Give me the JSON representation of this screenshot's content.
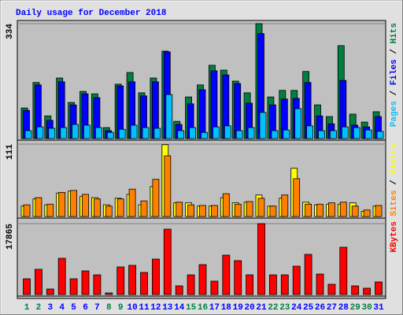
{
  "legend_separator": "/",
  "chart_data": [
    {
      "type": "bar",
      "title": "Daily usage for December 2018",
      "ylim": [
        0,
        334
      ],
      "yticks": [
        334
      ],
      "series": [
        {
          "name": "Hits",
          "color": "#008040",
          "values": [
            89,
            163,
            66,
            176,
            105,
            137,
            130,
            32,
            158,
            192,
            133,
            176,
            254,
            50,
            121,
            156,
            213,
            199,
            167,
            133,
            334,
            121,
            140,
            140,
            195,
            98,
            64,
            270,
            71,
            48,
            78
          ]
        },
        {
          "name": "Files",
          "color": "#0000ff",
          "values": [
            82,
            156,
            53,
            165,
            98,
            130,
            119,
            23,
            153,
            165,
            124,
            165,
            252,
            41,
            101,
            142,
            197,
            185,
            160,
            103,
            305,
            98,
            115,
            117,
            163,
            66,
            43,
            169,
            39,
            34,
            64
          ]
        },
        {
          "name": "Pages",
          "color": "#00c0ff",
          "values": [
            23,
            34,
            30,
            32,
            41,
            39,
            32,
            18,
            27,
            39,
            32,
            30,
            128,
            23,
            32,
            18,
            34,
            37,
            23,
            32,
            76,
            23,
            25,
            87,
            37,
            23,
            23,
            34,
            32,
            25,
            21
          ]
        }
      ]
    },
    {
      "type": "bar",
      "ylim": [
        0,
        111
      ],
      "yticks": [
        111
      ],
      "series": [
        {
          "name": "Visits",
          "color": "#ffff00",
          "values": [
            16,
            27,
            18,
            36,
            39,
            31,
            29,
            18,
            28,
            34,
            18,
            46,
            110,
            21,
            21,
            16,
            16,
            29,
            21,
            22,
            33,
            16,
            28,
            74,
            22,
            18,
            19,
            19,
            21,
            8,
            16
          ]
        },
        {
          "name": "Sites",
          "color": "#ff8000",
          "values": [
            18,
            29,
            19,
            37,
            40,
            34,
            27,
            16,
            27,
            42,
            24,
            57,
            93,
            22,
            18,
            17,
            17,
            35,
            19,
            23,
            28,
            16,
            33,
            58,
            19,
            19,
            21,
            22,
            16,
            10,
            17
          ]
        }
      ]
    },
    {
      "type": "bar",
      "ylim": [
        0,
        17865
      ],
      "yticks": [
        17865
      ],
      "categories": [
        "1",
        "2",
        "3",
        "4",
        "5",
        "6",
        "7",
        "8",
        "9",
        "10",
        "11",
        "12",
        "13",
        "14",
        "15",
        "16",
        "17",
        "18",
        "19",
        "20",
        "21",
        "22",
        "23",
        "24",
        "25",
        "26",
        "27",
        "28",
        "29",
        "30",
        "31"
      ],
      "category_colors": [
        "#008040",
        "#008040",
        "#0000ff",
        "#0000ff",
        "#0000ff",
        "#0000ff",
        "#0000ff",
        "#008040",
        "#008040",
        "#0000ff",
        "#0000ff",
        "#0000ff",
        "#0000ff",
        "#0000ff",
        "#008040",
        "#008040",
        "#0000ff",
        "#0000ff",
        "#0000ff",
        "#0000ff",
        "#0000ff",
        "#008040",
        "#008040",
        "#0000ff",
        "#0000ff",
        "#0000ff",
        "#0000ff",
        "#0000ff",
        "#008040",
        "#008040",
        "#0000ff"
      ],
      "series": [
        {
          "name": "KBytes",
          "color": "#ff0000",
          "values": [
            3970,
            6352,
            1390,
            9130,
            3970,
            5955,
            4960,
            400,
            6950,
            7345,
            5560,
            8930,
            16475,
            2180,
            4960,
            7540,
            3375,
            9925,
            8535,
            4960,
            17865,
            4960,
            4960,
            7145,
            10120,
            5160,
            2580,
            11910,
            2180,
            1590,
            3175
          ]
        }
      ]
    }
  ]
}
